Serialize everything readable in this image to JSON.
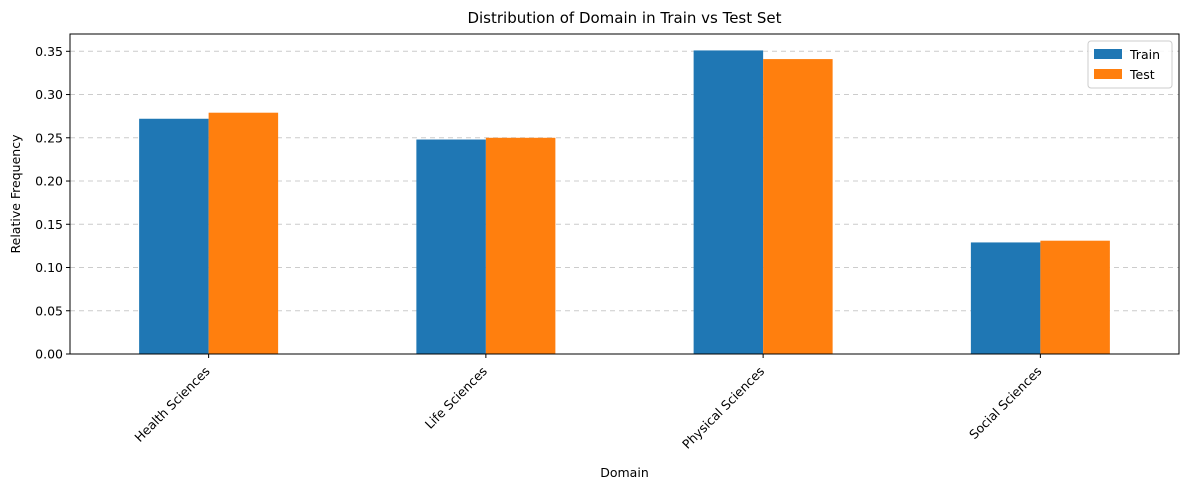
{
  "chart_data": {
    "type": "bar",
    "title": "Distribution of Domain in Train vs Test Set",
    "xlabel": "Domain",
    "ylabel": "Relative Frequency",
    "categories": [
      "Health Sciences",
      "Life Sciences",
      "Physical Sciences",
      "Social Sciences"
    ],
    "series": [
      {
        "name": "Train",
        "color": "#1f77b4",
        "values": [
          0.272,
          0.248,
          0.351,
          0.129
        ]
      },
      {
        "name": "Test",
        "color": "#ff7f0e",
        "values": [
          0.279,
          0.25,
          0.341,
          0.131
        ]
      }
    ],
    "ylim": [
      0,
      0.37
    ],
    "yticks": [
      "0.00",
      "0.05",
      "0.10",
      "0.15",
      "0.20",
      "0.25",
      "0.30",
      "0.35"
    ],
    "grid": "y-dashed",
    "legend_position": "top-right",
    "x_tick_rotation_deg": 45
  }
}
